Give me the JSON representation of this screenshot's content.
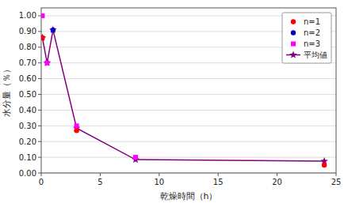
{
  "chart_data": {
    "type": "scatter",
    "xlabel": "乾燥時間（h）",
    "ylabel": "水分量（％）",
    "series": [
      {
        "name": "n=1",
        "type": "scatter",
        "marker": "circle",
        "color": "#FF0000",
        "x": [
          0.1,
          3,
          24
        ],
        "values": [
          0.86,
          0.27,
          0.05
        ]
      },
      {
        "name": "n=2",
        "type": "scatter",
        "marker": "circle",
        "color": "#0000CC",
        "x": [
          1
        ],
        "values": [
          0.91
        ]
      },
      {
        "name": "n=3",
        "type": "scatter",
        "marker": "square",
        "color": "#FF00FF",
        "x": [
          0.1,
          0.5,
          3,
          8
        ],
        "values": [
          1.0,
          0.7,
          0.3,
          0.1
        ]
      },
      {
        "name": "平均値",
        "type": "line",
        "marker": "star",
        "line_style": "solid",
        "color": "#800080",
        "x": [
          0.1,
          0.5,
          1,
          3,
          8,
          24
        ],
        "values": [
          0.86,
          0.7,
          0.91,
          0.285,
          0.085,
          0.075
        ]
      }
    ],
    "xlim": [
      0,
      25
    ],
    "ylim": [
      0.0,
      1.05
    ],
    "xticks": [
      0,
      5,
      10,
      15,
      20,
      25
    ],
    "yticks": [
      {
        "value": 0.0,
        "label": "0.00"
      },
      {
        "value": 0.1,
        "label": "0.10"
      },
      {
        "value": 0.2,
        "label": "0.20"
      },
      {
        "value": 0.3,
        "label": "0.30"
      },
      {
        "value": 0.4,
        "label": "0.40"
      },
      {
        "value": 0.5,
        "label": "0.50"
      },
      {
        "value": 0.6,
        "label": "0.60"
      },
      {
        "value": 0.7,
        "label": "0.70"
      },
      {
        "value": 0.8,
        "label": "0.80"
      },
      {
        "value": 0.9,
        "label": "0.90"
      },
      {
        "value": 1.0,
        "label": "1.00"
      }
    ],
    "grid": "y",
    "legend": "upper right"
  }
}
